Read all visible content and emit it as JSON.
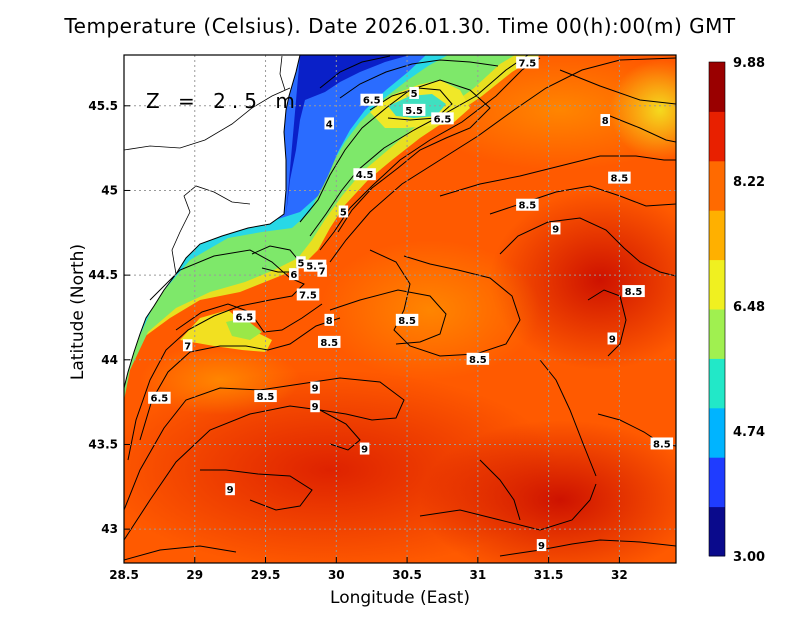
{
  "title": "Temperature (Celsius). Date 2026.01.30. Time 00(h):00(m) GMT",
  "depth_label": "Z = 2.5 m",
  "chart_data": {
    "type": "heatmap",
    "title": "Temperature (Celsius). Date 2026.01.30. Time 00(h):00(m) GMT",
    "xlabel": "Longitude (East)",
    "ylabel": "Latitude (North)",
    "xlim": [
      28.5,
      32.4
    ],
    "ylim": [
      42.8,
      45.8
    ],
    "x_ticks": [
      "28.5",
      "29",
      "29.5",
      "30",
      "30.5",
      "31",
      "31.5",
      "32"
    ],
    "y_ticks": [
      "43",
      "43.5",
      "44",
      "44.5",
      "45",
      "45.5"
    ],
    "grid": true,
    "colorbar": {
      "min": 3.0,
      "max": 9.88,
      "ticks": [
        "9.88",
        "8.22",
        "6.48",
        "4.74",
        "3.00"
      ],
      "tick_values": [
        9.88,
        8.22,
        6.48,
        4.74,
        3.0
      ],
      "colors": [
        "#0a0a8c",
        "#1f3cff",
        "#00b4ff",
        "#22e8c8",
        "#a0f050",
        "#f0f020",
        "#ffb000",
        "#ff6a00",
        "#e82000",
        "#9a0000"
      ]
    },
    "contour_labels": [
      {
        "text": "7.5",
        "x": 31.35,
        "y": 45.75
      },
      {
        "text": "5",
        "x": 30.55,
        "y": 45.57
      },
      {
        "text": "6.5",
        "x": 30.25,
        "y": 45.53
      },
      {
        "text": "5.5",
        "x": 30.55,
        "y": 45.47
      },
      {
        "text": "6.5",
        "x": 30.75,
        "y": 45.42
      },
      {
        "text": "4",
        "x": 29.95,
        "y": 45.39
      },
      {
        "text": "8",
        "x": 31.9,
        "y": 45.41
      },
      {
        "text": "4.5",
        "x": 30.2,
        "y": 45.09
      },
      {
        "text": "8.5",
        "x": 32.0,
        "y": 45.07
      },
      {
        "text": "8.5",
        "x": 31.35,
        "y": 44.91
      },
      {
        "text": "5",
        "x": 30.05,
        "y": 44.87
      },
      {
        "text": "9",
        "x": 31.55,
        "y": 44.77
      },
      {
        "text": "5",
        "x": 29.75,
        "y": 44.57
      },
      {
        "text": "5.5",
        "x": 29.85,
        "y": 44.55
      },
      {
        "text": "6",
        "x": 29.7,
        "y": 44.5
      },
      {
        "text": "7",
        "x": 29.9,
        "y": 44.52
      },
      {
        "text": "7.5",
        "x": 29.8,
        "y": 44.38
      },
      {
        "text": "8.5",
        "x": 32.1,
        "y": 44.4
      },
      {
        "text": "6.5",
        "x": 29.35,
        "y": 44.25
      },
      {
        "text": "8",
        "x": 29.95,
        "y": 44.23
      },
      {
        "text": "8.5",
        "x": 30.5,
        "y": 44.23
      },
      {
        "text": "8.5",
        "x": 29.95,
        "y": 44.1
      },
      {
        "text": "9",
        "x": 31.95,
        "y": 44.12
      },
      {
        "text": "8.5",
        "x": 31.0,
        "y": 44.0
      },
      {
        "text": "9",
        "x": 29.85,
        "y": 43.83
      },
      {
        "text": "7",
        "x": 28.95,
        "y": 44.08
      },
      {
        "text": "6.5",
        "x": 28.75,
        "y": 43.77
      },
      {
        "text": "8.5",
        "x": 29.5,
        "y": 43.78
      },
      {
        "text": "9",
        "x": 29.85,
        "y": 43.72
      },
      {
        "text": "9",
        "x": 30.2,
        "y": 43.47
      },
      {
        "text": "8.5",
        "x": 32.3,
        "y": 43.5
      },
      {
        "text": "9",
        "x": 29.25,
        "y": 43.23
      },
      {
        "text": "9",
        "x": 31.45,
        "y": 42.9
      }
    ]
  }
}
